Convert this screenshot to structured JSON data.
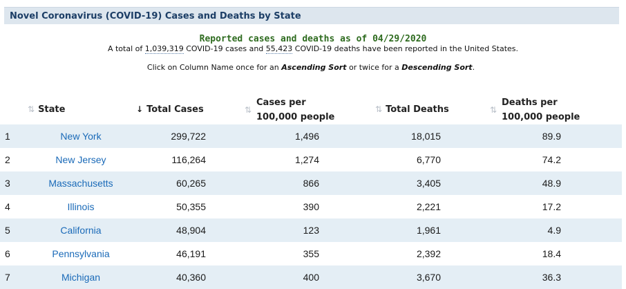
{
  "header": {
    "title": "Novel Coronavirus (COVID-19) Cases and Deaths by State"
  },
  "summary": {
    "reported": "Reported cases and deaths as of 04/29/2020",
    "text_prefix": "A total of ",
    "total_cases": "1,039,319",
    "text_middle": " COVID-19 cases and ",
    "total_deaths": "55,423",
    "text_suffix": " COVID-19 deaths have been reported in the United States."
  },
  "sort_hint": {
    "prefix": "Click on Column Name once for an ",
    "ascending": "Ascending Sort",
    "middle": " or twice for a ",
    "descending": "Descending Sort",
    "suffix": "."
  },
  "table": {
    "columns": {
      "state": "State",
      "total_cases": "Total Cases",
      "cases_per_100k_line1": "Cases per",
      "cases_per_100k_line2": "100,000 people",
      "total_deaths": "Total Deaths",
      "deaths_per_100k_line1": "Deaths per",
      "deaths_per_100k_line2": "100,000 people"
    },
    "sort_icons": {
      "unsorted": "sort-arrows-icon",
      "descending": "arrow-down-icon"
    },
    "rows": [
      {
        "rank": "1",
        "state": "New York",
        "total_cases": "299,722",
        "cases_per_100k": "1,496",
        "total_deaths": "18,015",
        "deaths_per_100k": "89.9"
      },
      {
        "rank": "2",
        "state": "New Jersey",
        "total_cases": "116,264",
        "cases_per_100k": "1,274",
        "total_deaths": "6,770",
        "deaths_per_100k": "74.2"
      },
      {
        "rank": "3",
        "state": "Massachusetts",
        "total_cases": "60,265",
        "cases_per_100k": "866",
        "total_deaths": "3,405",
        "deaths_per_100k": "48.9"
      },
      {
        "rank": "4",
        "state": "Illinois",
        "total_cases": "50,355",
        "cases_per_100k": "390",
        "total_deaths": "2,221",
        "deaths_per_100k": "17.2"
      },
      {
        "rank": "5",
        "state": "California",
        "total_cases": "48,904",
        "cases_per_100k": "123",
        "total_deaths": "1,961",
        "deaths_per_100k": "4.9"
      },
      {
        "rank": "6",
        "state": "Pennsylvania",
        "total_cases": "46,191",
        "cases_per_100k": "355",
        "total_deaths": "2,392",
        "deaths_per_100k": "18.4"
      },
      {
        "rank": "7",
        "state": "Michigan",
        "total_cases": "40,360",
        "cases_per_100k": "400",
        "total_deaths": "3,670",
        "deaths_per_100k": "36.3"
      }
    ]
  },
  "colors": {
    "title_bar_bg": "#dde6ee",
    "title_text": "#1c3e66",
    "reported_text": "#2e6b1f",
    "state_link": "#1a6ab8",
    "row_alt_bg": "#e4eef5"
  }
}
